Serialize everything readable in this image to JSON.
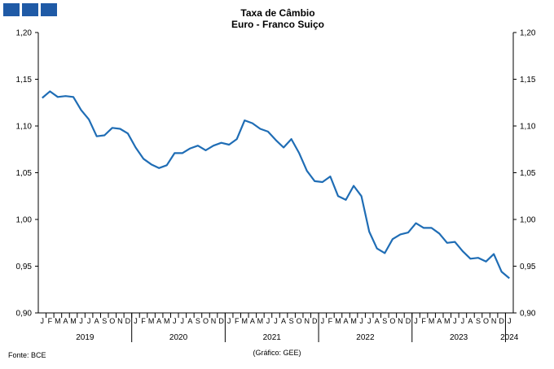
{
  "chart_data": {
    "type": "line",
    "title": "Taxa de Câmbio",
    "subtitle": "Euro - Franco Suiço",
    "ylim": [
      0.9,
      1.2
    ],
    "yticks": [
      "0,90",
      "0,95",
      "1,00",
      "1,05",
      "1,10",
      "1,15",
      "1,20"
    ],
    "ytick_values": [
      0.9,
      0.95,
      1.0,
      1.05,
      1.1,
      1.15,
      1.2
    ],
    "grid": false,
    "line_color": "#1f6db5",
    "month_labels": [
      "J",
      "F",
      "M",
      "A",
      "M",
      "J",
      "J",
      "A",
      "S",
      "O",
      "N",
      "D"
    ],
    "years": [
      "2019",
      "2020",
      "2021",
      "2022",
      "2023",
      "2024"
    ],
    "months_in_last_year": 1,
    "series": [
      {
        "values": [
          1.13,
          1.137,
          1.131,
          1.132,
          1.131,
          1.117,
          1.107,
          1.089,
          1.09,
          1.098,
          1.097,
          1.092,
          1.077,
          1.065,
          1.059,
          1.055,
          1.058,
          1.071,
          1.071,
          1.076,
          1.079,
          1.074,
          1.079,
          1.082,
          1.08,
          1.086,
          1.106,
          1.103,
          1.097,
          1.094,
          1.085,
          1.077,
          1.086,
          1.071,
          1.052,
          1.041,
          1.04,
          1.046,
          1.025,
          1.021,
          1.036,
          1.025,
          0.987,
          0.969,
          0.964,
          0.979,
          0.984,
          0.986,
          0.996,
          0.991,
          0.991,
          0.985,
          0.975,
          0.976,
          0.966,
          0.958,
          0.959,
          0.955,
          0.963,
          0.944,
          0.937
        ]
      }
    ]
  },
  "footer": {
    "source": "Fonte: BCE",
    "credit": "(Gráfico: GEE)"
  }
}
